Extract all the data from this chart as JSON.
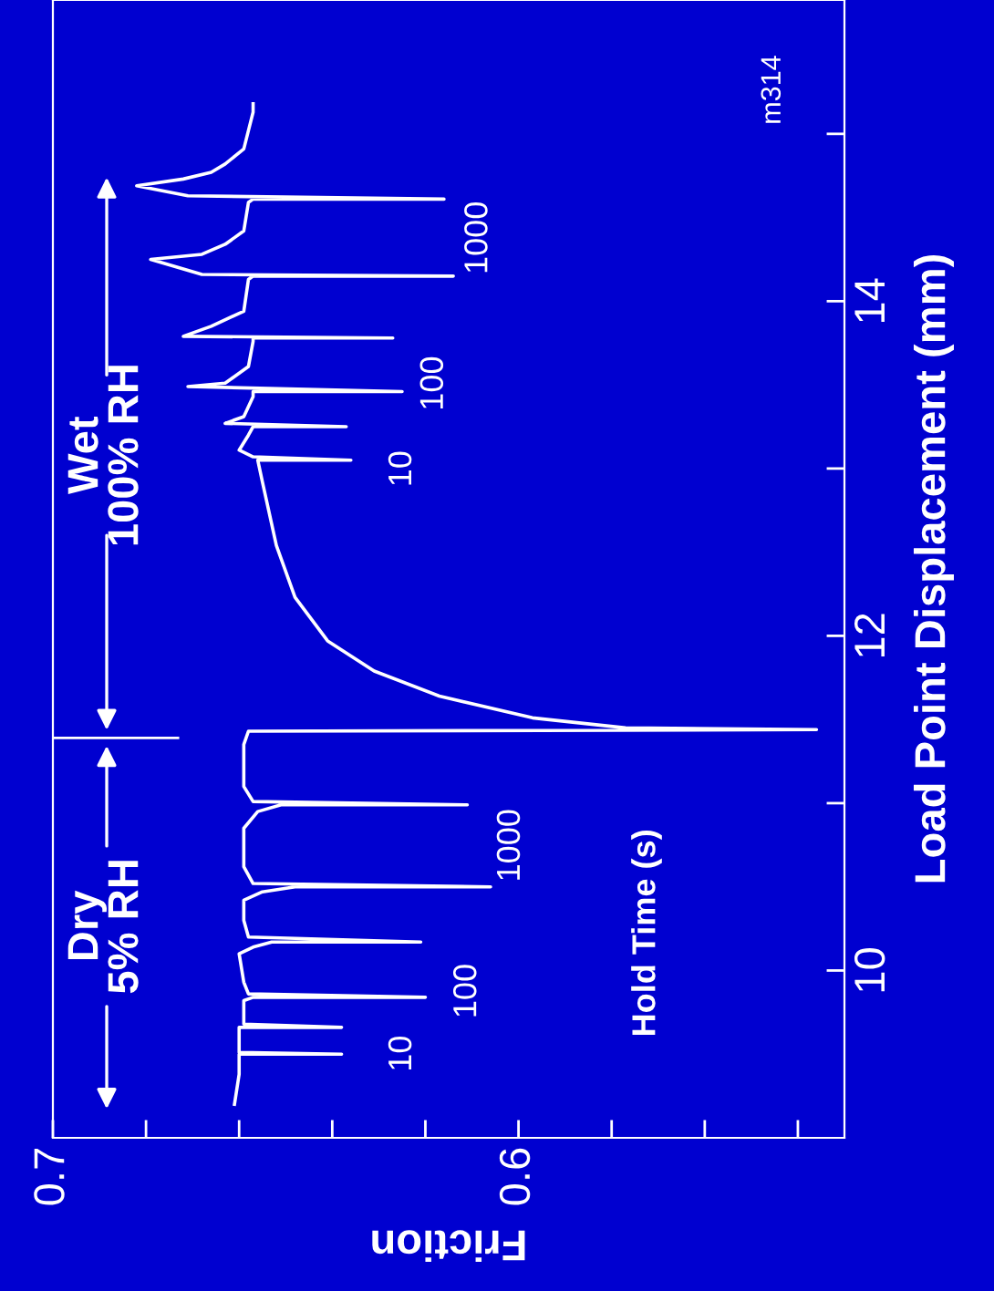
{
  "chart_data": {
    "type": "line",
    "xlabel": "Friction",
    "ylabel": "Load Point Displacement (mm)",
    "xlim": [
      0.7,
      0.53
    ],
    "ylim": [
      9.0,
      15.8
    ],
    "xticks": [
      0.7,
      {
        "value": 0.68,
        "label": null
      },
      {
        "value": 0.66,
        "label": null
      },
      {
        "value": 0.64,
        "label": null
      },
      {
        "value": 0.62,
        "label": null
      },
      0.6,
      {
        "value": 0.58,
        "label": null
      },
      {
        "value": 0.56,
        "label": null
      },
      {
        "value": 0.54,
        "label": null
      }
    ],
    "yticks": [
      10,
      {
        "value": 11,
        "label": null
      },
      12,
      {
        "value": 13,
        "label": null
      },
      14,
      {
        "value": 15,
        "label": null
      }
    ],
    "grid": false,
    "legend": false,
    "marker": "none",
    "line_style": "solid",
    "series": [
      {
        "color": "#ffffff",
        "x": [
          0.661,
          0.66,
          0.66,
          0.638,
          0.66,
          0.66,
          0.638,
          0.659,
          0.659,
          0.657,
          0.62,
          0.658,
          0.659,
          0.66,
          0.657,
          0.653,
          0.621,
          0.658,
          0.659,
          0.659,
          0.655,
          0.648,
          0.606,
          0.657,
          0.659,
          0.659,
          0.656,
          0.651,
          0.611,
          0.657,
          0.659,
          0.659,
          0.658,
          0.536,
          0.577,
          0.597,
          0.617,
          0.631,
          0.641,
          0.648,
          0.652,
          0.655,
          0.656,
          0.636,
          0.657,
          0.66,
          0.658,
          0.657,
          0.637,
          0.663,
          0.659,
          0.657,
          0.657,
          0.625,
          0.671,
          0.663,
          0.658,
          0.657,
          0.657,
          0.627,
          0.672,
          0.666,
          0.659,
          0.658,
          0.657,
          0.614,
          0.668,
          0.679,
          0.668,
          0.663,
          0.659,
          0.658,
          0.657,
          0.616,
          0.671,
          0.682,
          0.672,
          0.666,
          0.663,
          0.659,
          0.658,
          0.657,
          0.657
        ],
        "values": [
          9.2,
          9.38,
          9.5,
          9.5,
          9.51,
          9.66,
          9.66,
          9.68,
          9.82,
          9.84,
          9.84,
          9.86,
          9.93,
          10.1,
          10.14,
          10.17,
          10.17,
          10.2,
          10.3,
          10.42,
          10.47,
          10.5,
          10.5,
          10.52,
          10.62,
          10.85,
          10.95,
          10.99,
          10.99,
          11.01,
          11.1,
          11.35,
          11.43,
          11.44,
          11.45,
          11.51,
          11.64,
          11.79,
          11.97,
          12.23,
          12.54,
          12.92,
          13.05,
          13.05,
          13.07,
          13.11,
          13.2,
          13.25,
          13.25,
          13.27,
          13.31,
          13.43,
          13.46,
          13.46,
          13.49,
          13.51,
          13.61,
          13.76,
          13.78,
          13.78,
          13.79,
          13.85,
          13.94,
          14.13,
          14.15,
          14.15,
          14.16,
          14.25,
          14.28,
          14.34,
          14.42,
          14.59,
          14.61,
          14.61,
          14.63,
          14.69,
          14.73,
          14.77,
          14.82,
          14.91,
          15.02,
          15.13,
          15.18
        ]
      }
    ],
    "ref_lines": [
      {
        "axis": "y",
        "value": 11.39
      }
    ],
    "annotations": [
      "10",
      "100",
      "1000",
      "10",
      "100",
      "1000",
      "Hold Time (s)",
      "Dry\n5% RH",
      "Wet\n100% RH",
      "m314"
    ]
  }
}
